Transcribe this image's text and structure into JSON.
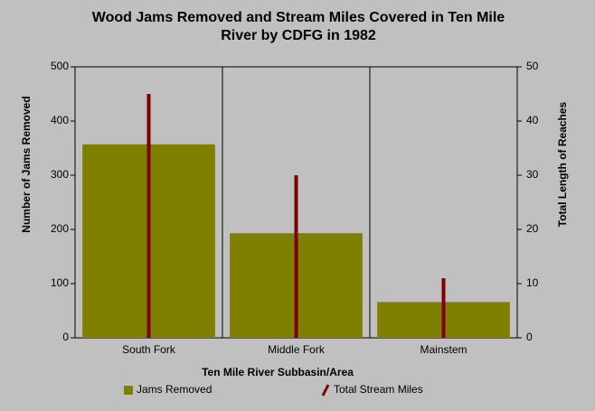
{
  "chart_data": {
    "type": "bar_line",
    "title": "Wood Jams Removed and Stream Miles Covered in Ten Mile River by CDFG in 1982",
    "x_label": "Ten Mile River Subbasin/Area",
    "y_label": "Number of Jams Removed",
    "y2_label": "Total Length of Reaches",
    "categories": [
      "South Fork",
      "Middle Fork",
      "Mainstem"
    ],
    "series": [
      {
        "name": "Jams Removed",
        "color": "#808000",
        "values": [
          357,
          193,
          66
        ]
      },
      {
        "name": "Total Stream Miles",
        "color": "#800000",
        "values": [
          45,
          30,
          11
        ],
        "axis": "y2"
      }
    ],
    "ylim": [
      0,
      500
    ],
    "yticks": [
      0,
      100,
      200,
      300,
      400,
      500
    ],
    "y2lim": [
      0,
      50
    ],
    "y2ticks": [
      0,
      10,
      20,
      30,
      40,
      50
    ]
  }
}
